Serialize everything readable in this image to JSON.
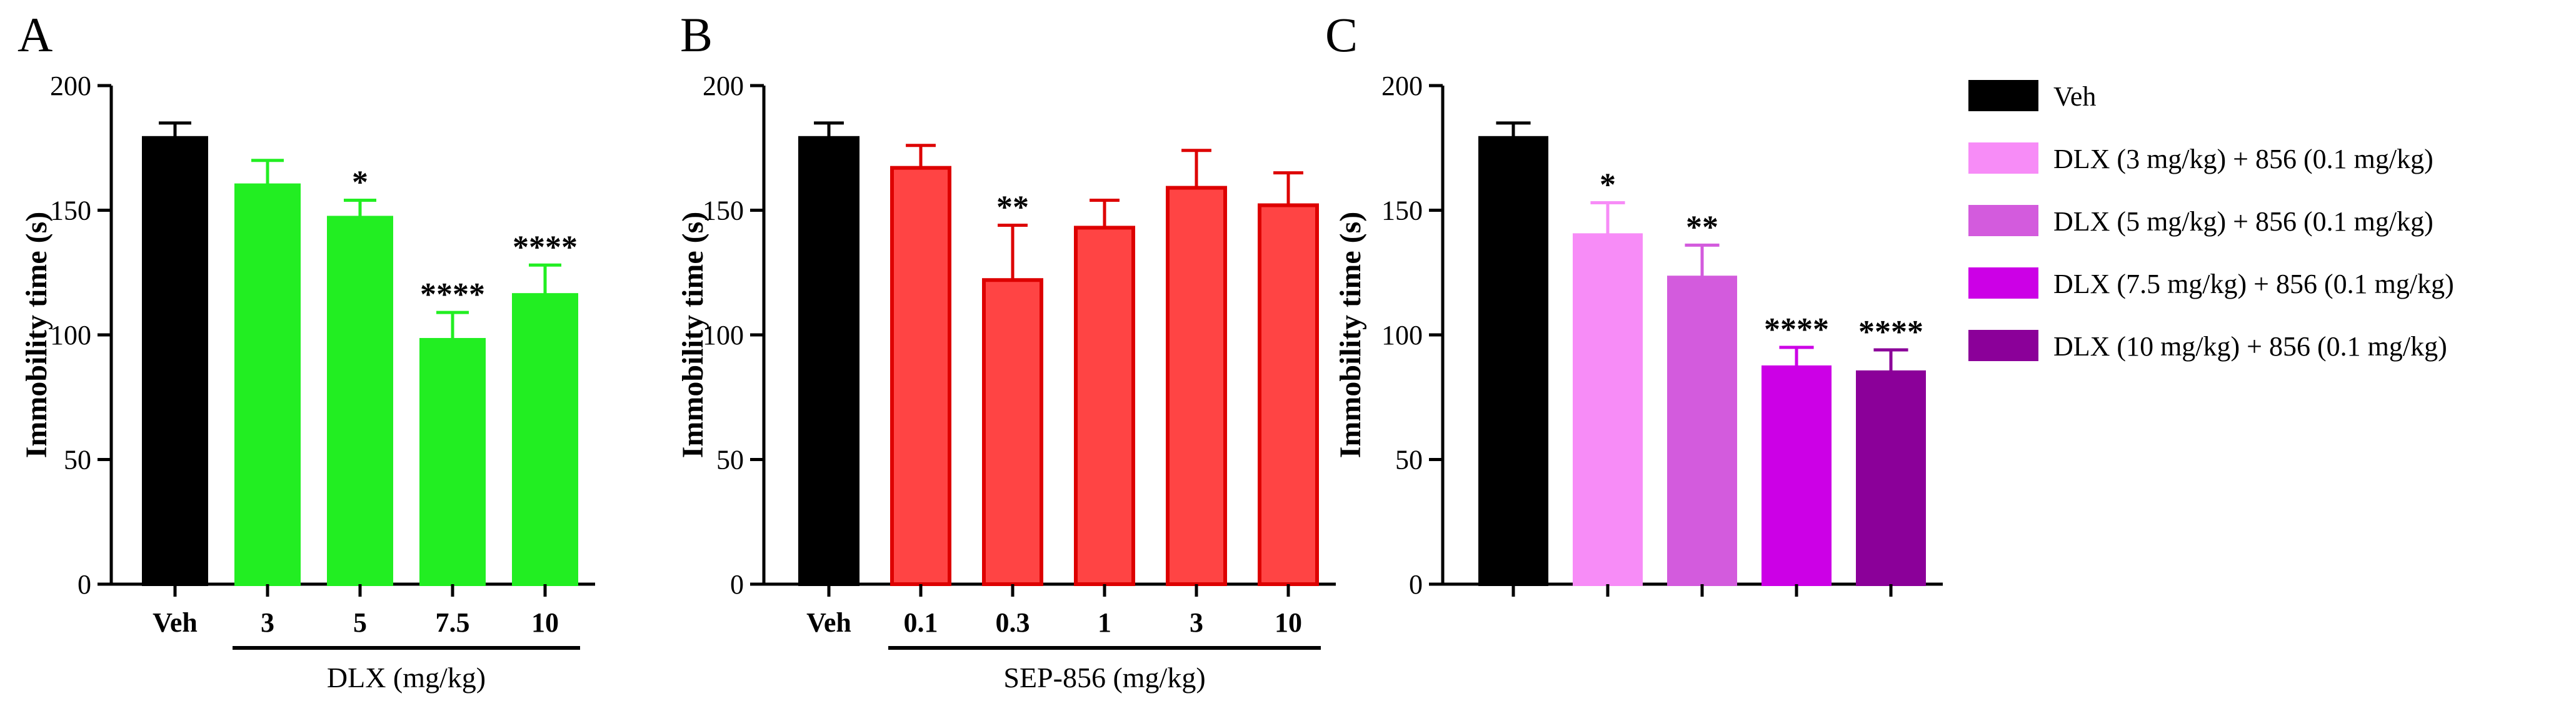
{
  "figure": {
    "legend": {
      "entries": [
        {
          "label": "Veh",
          "color": "#000000"
        },
        {
          "label": "DLX (3 mg/kg) + 856 (0.1 mg/kg)",
          "color": "#f78cf7"
        },
        {
          "label": "DLX (5 mg/kg) + 856 (0.1 mg/kg)",
          "color": "#d35bdd"
        },
        {
          "label": "DLX (7.5 mg/kg) + 856 (0.1 mg/kg)",
          "color": "#cc00e6"
        },
        {
          "label": "DLX (10 mg/kg) + 856 (0.1 mg/kg)",
          "color": "#8b0099"
        }
      ]
    }
  },
  "chart_data": [
    {
      "panel": "A",
      "type": "bar",
      "ylabel": "Immobility time (s)",
      "ylim": [
        0,
        200
      ],
      "yticks": [
        0,
        50,
        100,
        150,
        200
      ],
      "categories": [
        "Veh",
        "3",
        "5",
        "7.5",
        "10"
      ],
      "values": [
        179,
        160,
        147,
        98,
        116
      ],
      "errors": [
        6,
        10,
        7,
        11,
        12
      ],
      "significance": [
        "",
        "",
        "*",
        "****",
        "****"
      ],
      "colors": [
        "#000000",
        "#22ee22",
        "#22ee22",
        "#22ee22",
        "#22ee22"
      ],
      "edge_colors": [
        "#000000",
        "#22ee22",
        "#22ee22",
        "#22ee22",
        "#22ee22"
      ],
      "group_label": "DLX (mg/kg)",
      "group_span": [
        1,
        4
      ]
    },
    {
      "panel": "B",
      "type": "bar",
      "ylabel": "Immobility time (s)",
      "ylim": [
        0,
        200
      ],
      "yticks": [
        0,
        50,
        100,
        150,
        200
      ],
      "categories": [
        "Veh",
        "0.1",
        "0.3",
        "1",
        "3",
        "10"
      ],
      "values": [
        179,
        167,
        122,
        143,
        159,
        152
      ],
      "errors": [
        6,
        9,
        22,
        11,
        15,
        13
      ],
      "significance": [
        "",
        "",
        "**",
        "",
        "",
        ""
      ],
      "colors": [
        "#000000",
        "#ff4444",
        "#ff4444",
        "#ff4444",
        "#ff4444",
        "#ff4444"
      ],
      "edge_colors": [
        "#000000",
        "#dd0000",
        "#dd0000",
        "#dd0000",
        "#dd0000",
        "#dd0000"
      ],
      "group_label": "SEP-856 (mg/kg)",
      "group_span": [
        1,
        5
      ]
    },
    {
      "panel": "C",
      "type": "bar",
      "ylabel": "Immobility time (s)",
      "ylim": [
        0,
        200
      ],
      "yticks": [
        0,
        50,
        100,
        150,
        200
      ],
      "categories": [
        "",
        "",
        "",
        "",
        ""
      ],
      "values": [
        179,
        140,
        123,
        87,
        85
      ],
      "errors": [
        6,
        13,
        13,
        8,
        9
      ],
      "significance": [
        "",
        "*",
        "**",
        "****",
        "****"
      ],
      "colors": [
        "#000000",
        "#f78cf7",
        "#d35bdd",
        "#cc00e6",
        "#8b0099"
      ],
      "edge_colors": [
        "#000000",
        "#f78cf7",
        "#d35bdd",
        "#cc00e6",
        "#8b0099"
      ],
      "group_label": "",
      "group_span": null
    }
  ]
}
